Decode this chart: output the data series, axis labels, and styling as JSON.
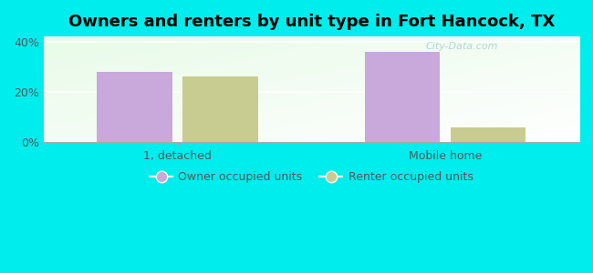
{
  "title": "Owners and renters by unit type in Fort Hancock, TX",
  "categories": [
    "1, detached",
    "Mobile home"
  ],
  "owner_values": [
    28,
    36
  ],
  "renter_values": [
    26,
    6
  ],
  "owner_color": "#c9a8dc",
  "renter_color": "#c8cc90",
  "ylim": [
    0,
    42
  ],
  "yticks": [
    0,
    20,
    40
  ],
  "ytick_labels": [
    "0%",
    "20%",
    "40%"
  ],
  "background_color": "#00eded",
  "bar_width": 0.28,
  "title_fontsize": 13,
  "legend_labels": [
    "Owner occupied units",
    "Renter occupied units"
  ],
  "watermark": "City-Data.com"
}
